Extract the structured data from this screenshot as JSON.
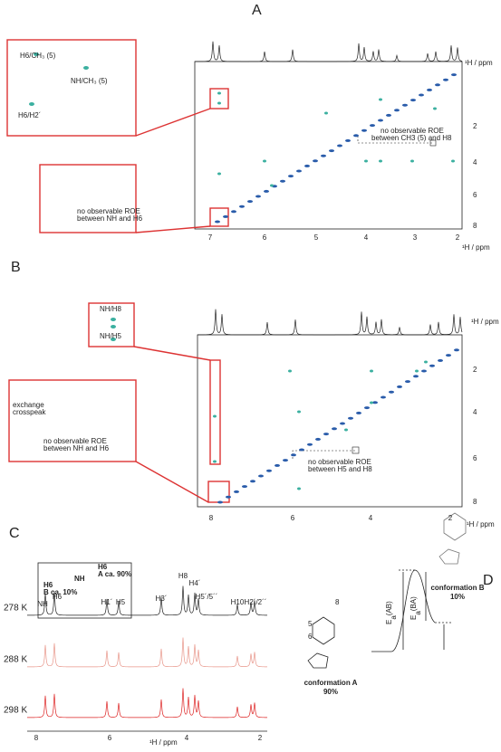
{
  "panel_a": {
    "label": "A",
    "axis_label": "¹H / ppm",
    "xticks": [
      "7",
      "6",
      "5",
      "4",
      "3",
      "2"
    ],
    "yticks": [
      "2",
      "4",
      "6",
      "8"
    ],
    "inset_1": {
      "labels": [
        "H6/CH₃ (5)",
        "NH/CH₃ (5)",
        "H6/H2´"
      ]
    },
    "inset_2": {
      "note": [
        "no observable ROE",
        "between NH and H6"
      ]
    },
    "note": [
      "no observable ROE",
      "between CH3 (5) and H8"
    ]
  },
  "panel_b": {
    "label": "B",
    "axis_label": "¹H / ppm",
    "xticks": [
      "8",
      "6",
      "4",
      "2"
    ],
    "yticks": [
      "2",
      "4",
      "6",
      "8"
    ],
    "inset_1": {
      "labels": [
        "NH/H8",
        "NH/H5"
      ]
    },
    "inset_2": {
      "labels": [
        "exchange",
        "crosspeak"
      ],
      "note": [
        "no observable ROE",
        "between NH and H6"
      ]
    },
    "note": [
      "no observable ROE",
      "between H5 and H8"
    ]
  },
  "panel_c": {
    "label": "C",
    "temperatures": [
      "278 K",
      "288 K",
      "298 K"
    ],
    "peaks": [
      "NH",
      "H6",
      "H1´",
      "H5",
      "H3´",
      "H8",
      "H4´",
      "H5´/5´´",
      "H10",
      "H2´/2´´"
    ],
    "inset": [
      "H6",
      "A ca. 90%",
      "H6",
      "B ca. 10%",
      "NH"
    ],
    "xticks": [
      "8",
      "6",
      "4",
      "2"
    ],
    "axis_label": "¹H / ppm"
  },
  "panel_d": {
    "label": "D",
    "barriers": [
      "E",
      "a",
      "(AB)",
      "E",
      "a",
      "(BA)"
    ],
    "atoms": [
      "8",
      "5",
      "6"
    ],
    "conformation_a": [
      "conformation A",
      "90%"
    ],
    "conformation_b": [
      "conformation B",
      "10%"
    ]
  }
}
